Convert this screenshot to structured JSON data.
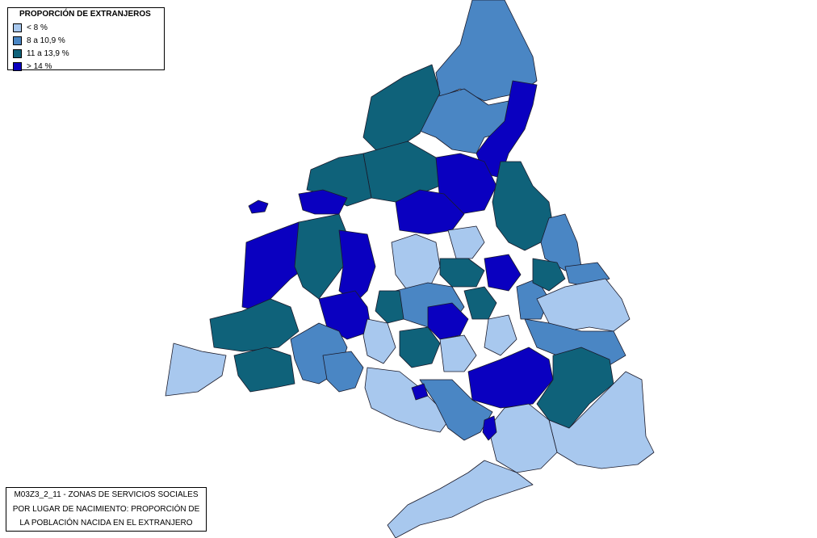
{
  "legend": {
    "title": "PROPORCIÓN DE EXTRANJEROS",
    "items": [
      {
        "label": "< 8 %",
        "color": "#a8c8ee"
      },
      {
        "label": "8 a 10,9 %",
        "color": "#4a86c4"
      },
      {
        "label": "11 a 13,9 %",
        "color": "#0f627a"
      },
      {
        "label": "> 14 %",
        "color": "#0a00c0"
      }
    ]
  },
  "caption": {
    "line1": "M03Z3_2_11 - ZONAS DE SERVICIOS SOCIALES",
    "line2": "POR LUGAR DE NACIMIENTO: PROPORCIÓN DE",
    "line3": "LA POBLACIÓN NACIDA EN EL EXTRANJERO"
  }
}
